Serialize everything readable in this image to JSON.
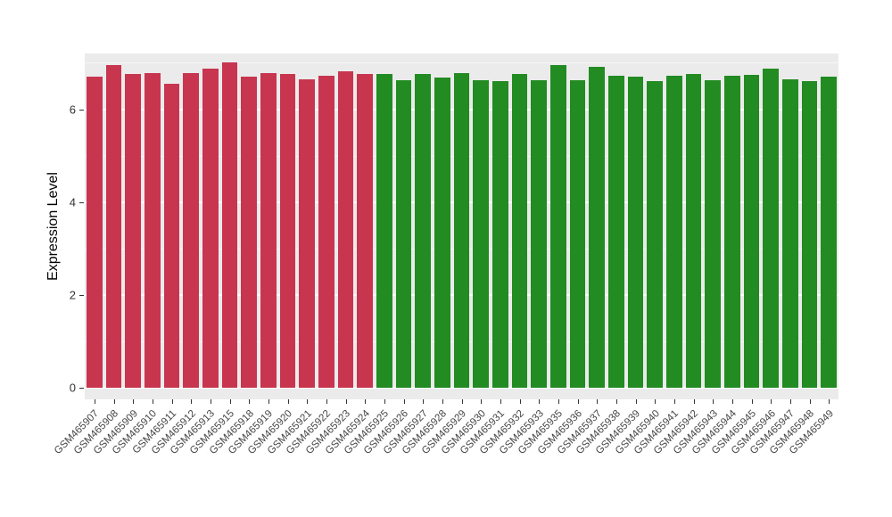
{
  "chart_data": {
    "type": "bar",
    "title": "",
    "xlabel": "",
    "ylabel": "Expression Level",
    "ylim": [
      0,
      7.2
    ],
    "yticks": [
      0,
      2,
      4,
      6
    ],
    "yticks_minor": [
      1,
      3,
      5,
      7
    ],
    "grid": true,
    "legend": "none",
    "panel_background": "#EBEBEB",
    "grid_color": "#FFFFFF",
    "group_colors": {
      "groupA": "#C8354F",
      "groupB": "#228B22"
    },
    "categories": [
      "GSM465907",
      "GSM465908",
      "GSM465909",
      "GSM465910",
      "GSM465911",
      "GSM465912",
      "GSM465913",
      "GSM465915",
      "GSM465918",
      "GSM465919",
      "GSM465920",
      "GSM465921",
      "GSM465922",
      "GSM465923",
      "GSM465924",
      "GSM465925",
      "GSM465926",
      "GSM465927",
      "GSM465928",
      "GSM465929",
      "GSM465930",
      "GSM465931",
      "GSM465932",
      "GSM465933",
      "GSM465935",
      "GSM465936",
      "GSM465937",
      "GSM465938",
      "GSM465939",
      "GSM465940",
      "GSM465941",
      "GSM465942",
      "GSM465943",
      "GSM465944",
      "GSM465945",
      "GSM465946",
      "GSM465947",
      "GSM465948",
      "GSM465949"
    ],
    "values": [
      6.7,
      6.95,
      6.75,
      6.78,
      6.55,
      6.78,
      6.88,
      7.0,
      6.7,
      6.78,
      6.76,
      6.65,
      6.72,
      6.82,
      6.75,
      6.75,
      6.62,
      6.76,
      6.68,
      6.78,
      6.62,
      6.6,
      6.76,
      6.62,
      6.95,
      6.62,
      6.92,
      6.72,
      6.7,
      6.6,
      6.72,
      6.75,
      6.62,
      6.72,
      6.73,
      6.88,
      6.65,
      6.6,
      6.7
    ],
    "bar_groups": [
      "groupA",
      "groupA",
      "groupA",
      "groupA",
      "groupA",
      "groupA",
      "groupA",
      "groupA",
      "groupA",
      "groupA",
      "groupA",
      "groupA",
      "groupA",
      "groupA",
      "groupA",
      "groupB",
      "groupB",
      "groupB",
      "groupB",
      "groupB",
      "groupB",
      "groupB",
      "groupB",
      "groupB",
      "groupB",
      "groupB",
      "groupB",
      "groupB",
      "groupB",
      "groupB",
      "groupB",
      "groupB",
      "groupB",
      "groupB",
      "groupB",
      "groupB",
      "groupB",
      "groupB",
      "groupB"
    ]
  }
}
